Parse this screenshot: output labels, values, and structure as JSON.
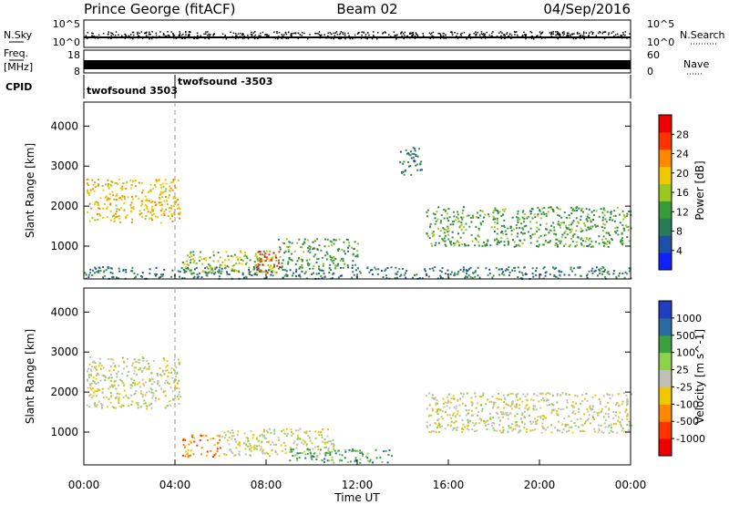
{
  "header": {
    "station": "Prince George (fitACF)",
    "beam": "Beam 02",
    "date": "04/Sep/2016"
  },
  "side_labels": {
    "nsky": "N.Sky",
    "freq": "Freq.",
    "freq_unit": "[MHz]",
    "cpid": "CPID",
    "nsearch": "N.Search",
    "nave": "Nave"
  },
  "noise_panel": {
    "left_ticks": [
      "10^5",
      "10^0"
    ],
    "right_ticks": [
      "10^5",
      "10^0"
    ]
  },
  "freq_panel": {
    "left_ticks": [
      "18",
      "8"
    ],
    "right_ticks": [
      "60",
      "0"
    ]
  },
  "cpid_panel": {
    "segments": [
      {
        "label": "twofsound 3503",
        "start_hour": 0.0
      },
      {
        "label": "twofsound -3503",
        "start_hour": 4.0
      }
    ]
  },
  "colors": {
    "power": [
      "#1020ff",
      "#1f4fa8",
      "#2a7a5a",
      "#3a9a3a",
      "#9ac820",
      "#f0c800",
      "#ff8800",
      "#ff3300",
      "#ee0000"
    ],
    "velocity": [
      "#ee0000",
      "#ff3300",
      "#ff8800",
      "#f0c800",
      "#c0c0b8",
      "#8ed14a",
      "#3aa040",
      "#2a6aa0",
      "#1f3fc0"
    ]
  },
  "chart_data": [
    {
      "type": "heatmap",
      "name_hint": "power",
      "xlabel": "",
      "ylabel": "Slant Range [km]",
      "xlim": [
        0,
        24
      ],
      "ylim": [
        180,
        4600
      ],
      "y_ticks": [
        "1000",
        "2000",
        "3000",
        "4000"
      ],
      "colorbar": {
        "label": "Power [dB]",
        "ticks": [
          "4",
          "8",
          "12",
          "16",
          "20",
          "24",
          "28"
        ],
        "range": [
          0,
          30
        ]
      },
      "features": [
        {
          "x_range": [
            0.1,
            4.2
          ],
          "y_range": [
            1600,
            2700
          ],
          "value": 20
        },
        {
          "x_range": [
            4.3,
            8.5
          ],
          "y_range": [
            350,
            900
          ],
          "value": 16
        },
        {
          "x_range": [
            7.5,
            8.6
          ],
          "y_range": [
            350,
            900
          ],
          "value": 28
        },
        {
          "x_range": [
            8.5,
            12.0
          ],
          "y_range": [
            500,
            1200
          ],
          "value": 10
        },
        {
          "x_range": [
            15.0,
            24.0
          ],
          "y_range": [
            1000,
            2000
          ],
          "value": 10
        },
        {
          "x_range": [
            13.8,
            14.8
          ],
          "y_range": [
            2800,
            3500
          ],
          "value": 8
        },
        {
          "x_range": [
            0.0,
            24.0
          ],
          "y_range": [
            200,
            500
          ],
          "value": 8
        }
      ]
    },
    {
      "type": "heatmap",
      "name_hint": "velocity",
      "xlabel": "Time UT",
      "ylabel": "Slant Range [km]",
      "xlim": [
        0,
        24
      ],
      "ylim": [
        180,
        4600
      ],
      "x_ticks": [
        "00:00",
        "04:00",
        "08:00",
        "12:00",
        "16:00",
        "20:00",
        "00:00"
      ],
      "y_ticks": [
        "1000",
        "2000",
        "3000",
        "4000"
      ],
      "colorbar": {
        "label": "Velocity [m s^-1]",
        "ticks": [
          "-1000",
          "-500",
          "-100",
          "-25",
          "25",
          "100",
          "500",
          "1000"
        ],
        "range": [
          -1200,
          1200
        ]
      },
      "features": [
        {
          "x_range": [
            0.1,
            4.2
          ],
          "y_range": [
            1600,
            2900
          ],
          "value": 0
        },
        {
          "x_range": [
            4.3,
            6.0
          ],
          "y_range": [
            400,
            950
          ],
          "value": -300
        },
        {
          "x_range": [
            6.0,
            11.0
          ],
          "y_range": [
            400,
            1100
          ],
          "value": 0
        },
        {
          "x_range": [
            9.0,
            13.5
          ],
          "y_range": [
            250,
            600
          ],
          "value": 150
        },
        {
          "x_range": [
            15.0,
            24.0
          ],
          "y_range": [
            1000,
            2000
          ],
          "value": 0
        }
      ]
    }
  ]
}
